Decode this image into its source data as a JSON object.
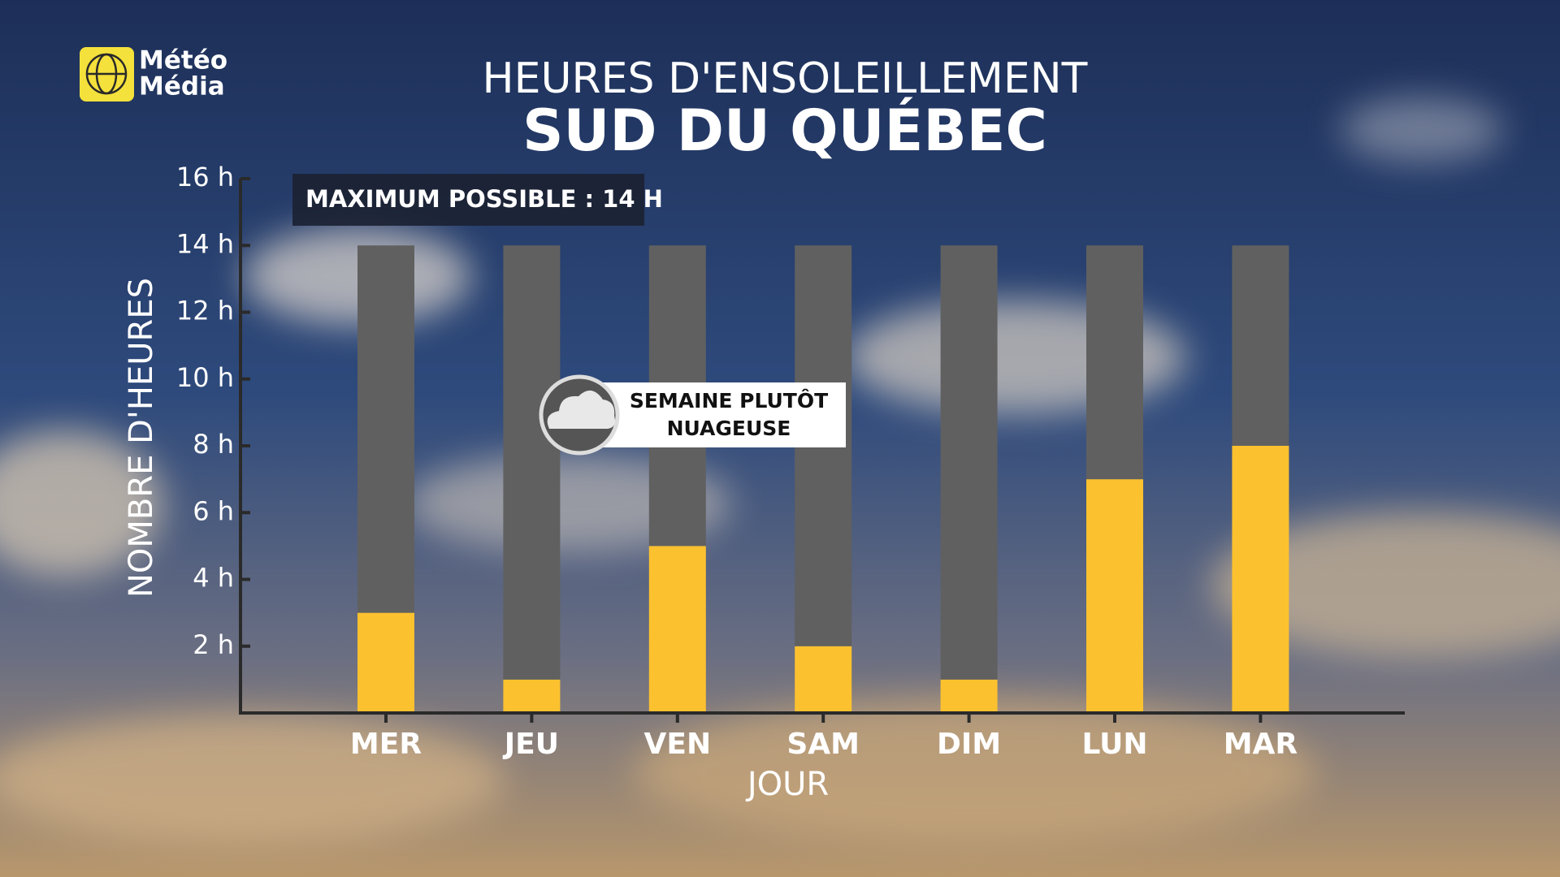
{
  "logo": [
    "Météo",
    "Média"
  ],
  "chart_data": {
    "type": "stacked-bar",
    "title": "HEURES D'ENSOLEILLEMENT",
    "subtitle": "SUD DU QUÉBEC",
    "annotations": [
      "MAXIMUM POSSIBLE : 14 H",
      "SEMAINE PLUTÔT",
      "NUAGEUSE"
    ],
    "x_label": "JOUR",
    "y_label": "NOMBRE D'HEURES",
    "categories": [
      "MER",
      "JEU",
      "VEN",
      "SAM",
      "DIM",
      "LUN",
      "MAR"
    ],
    "series": [
      {
        "color": "#fcc12f",
        "values": [
          3,
          1,
          5,
          2,
          1,
          7,
          8
        ]
      },
      {
        "color": "#606060",
        "values": [
          11,
          13,
          9,
          12,
          13,
          7,
          6
        ]
      }
    ],
    "ylim": [
      0,
      16
    ],
    "yticks": [
      {
        "value": 2,
        "label": "2 h"
      },
      {
        "value": 4,
        "label": "4 h"
      },
      {
        "value": 6,
        "label": "6 h"
      },
      {
        "value": 8,
        "label": "8 h"
      },
      {
        "value": 10,
        "label": "10 h"
      },
      {
        "value": 12,
        "label": "12 h"
      },
      {
        "value": 14,
        "label": "14 h"
      },
      {
        "value": 16,
        "label": "16 h"
      }
    ],
    "grid": false
  }
}
